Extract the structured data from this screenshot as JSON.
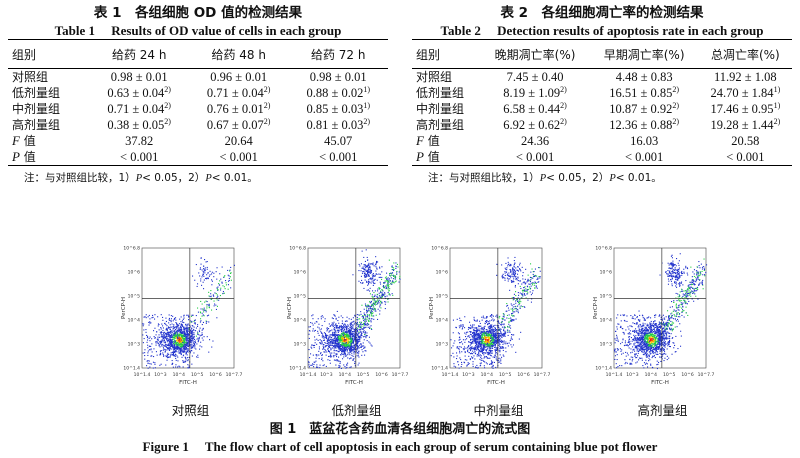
{
  "table1": {
    "title_cn": "表 1　各组细胞 OD 值的检测结果",
    "title_en": "Table 1　 Results of OD value of cells in each group",
    "headers": [
      "组别",
      "给药 24 h",
      "给药 48 h",
      "给药 72 h"
    ],
    "rows": [
      {
        "label": "对照组",
        "cells": [
          [
            "0.98 ± 0.01",
            ""
          ],
          [
            "0.96 ± 0.01",
            ""
          ],
          [
            "0.98 ± 0.01",
            ""
          ]
        ]
      },
      {
        "label": "低剂量组",
        "cells": [
          [
            "0.63 ± 0.04",
            "2)"
          ],
          [
            "0.71 ± 0.04",
            "2)"
          ],
          [
            "0.88 ± 0.02",
            "1)"
          ]
        ]
      },
      {
        "label": "中剂量组",
        "cells": [
          [
            "0.71 ± 0.04",
            "2)"
          ],
          [
            "0.76 ± 0.01",
            "2)"
          ],
          [
            "0.85 ± 0.03",
            "1)"
          ]
        ]
      },
      {
        "label": "高剂量组",
        "cells": [
          [
            "0.38 ± 0.05",
            "2)"
          ],
          [
            "0.67 ± 0.07",
            "2)"
          ],
          [
            "0.81 ± 0.03",
            "2)"
          ]
        ]
      },
      {
        "label_italic": "F",
        "label": " 值",
        "cells": [
          [
            "37.82",
            ""
          ],
          [
            "20.64",
            ""
          ],
          [
            "45.07",
            ""
          ]
        ]
      },
      {
        "label_italic": "P",
        "label": " 值",
        "cells": [
          [
            "< 0.001",
            ""
          ],
          [
            "< 0.001",
            ""
          ],
          [
            "< 0.001",
            ""
          ]
        ]
      }
    ],
    "note": {
      "prefix": "注：与对照组比较，1）",
      "p1": "P",
      "mid": "< 0.05，2）",
      "p2": "P",
      "suffix": "< 0.01。"
    }
  },
  "table2": {
    "title_cn": "表 2　各组细胞凋亡率的检测结果",
    "title_en": "Table 2　 Detection results of apoptosis rate in each group",
    "headers": [
      "组别",
      "晚期凋亡率(%)",
      "早期凋亡率(%)",
      "总凋亡率(%)"
    ],
    "rows": [
      {
        "label": "对照组",
        "cells": [
          [
            "7.45 ± 0.40",
            ""
          ],
          [
            "4.48 ± 0.83",
            ""
          ],
          [
            "11.92 ± 1.08",
            ""
          ]
        ]
      },
      {
        "label": "低剂量组",
        "cells": [
          [
            "8.19 ± 1.09",
            "2)"
          ],
          [
            "16.51 ± 0.85",
            "2)"
          ],
          [
            "24.70 ± 1.84",
            "1)"
          ]
        ]
      },
      {
        "label": "中剂量组",
        "cells": [
          [
            "6.58 ± 0.44",
            "2)"
          ],
          [
            "10.87 ± 0.92",
            "2)"
          ],
          [
            "17.46 ± 0.95",
            "1)"
          ]
        ]
      },
      {
        "label": "高剂量组",
        "cells": [
          [
            "6.92 ± 0.62",
            "2)"
          ],
          [
            "12.36 ± 0.88",
            "2)"
          ],
          [
            "19.28 ± 1.44",
            "2)"
          ]
        ]
      },
      {
        "label_italic": "F",
        "label": " 值",
        "cells": [
          [
            "24.36",
            ""
          ],
          [
            "16.03",
            ""
          ],
          [
            "20.58",
            ""
          ]
        ]
      },
      {
        "label_italic": "P",
        "label": " 值",
        "cells": [
          [
            "< 0.001",
            ""
          ],
          [
            "< 0.001",
            ""
          ],
          [
            "< 0.001",
            ""
          ]
        ]
      }
    ],
    "note": {
      "prefix": "注：与对照组比较，1）",
      "p1": "P",
      "mid": "< 0.05，2）",
      "p2": "P",
      "suffix": "< 0.01。"
    }
  },
  "figure": {
    "x_axis_label": "FITC-H",
    "y_axis_label": "PerCP-H",
    "x_ticks": [
      "10^1.4",
      "10^3",
      "10^4",
      "10^5",
      "10^6",
      "10^7.7"
    ],
    "y_ticks": [
      "10^1.4",
      "10^3",
      "10^4",
      "10^5",
      "10^6",
      "10^6.8"
    ],
    "panels": [
      "对照组",
      "低剂量组",
      "中剂量组",
      "高剂量组"
    ],
    "caption_cn": "图 1　蓝盆花含药血清各组细胞凋亡的流式图",
    "caption_en": "Figure 1　 The flow chart of cell apoptosis in each group of serum containing blue pot flower",
    "colors": {
      "low": "#2233cc",
      "mid": "#22cc44",
      "high": "#ffcc00",
      "peak": "#ee2200"
    }
  }
}
